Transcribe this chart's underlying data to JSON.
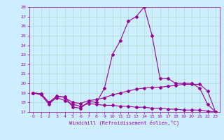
{
  "xlabel": "Windchill (Refroidissement éolien,°C)",
  "bg_color": "#cceeff",
  "line_color": "#990099",
  "grid_color": "#aaddcc",
  "xlim": [
    -0.5,
    23.5
  ],
  "ylim": [
    17,
    28
  ],
  "yticks": [
    17,
    18,
    19,
    20,
    21,
    22,
    23,
    24,
    25,
    26,
    27,
    28
  ],
  "xticks": [
    0,
    1,
    2,
    3,
    4,
    5,
    6,
    7,
    8,
    9,
    10,
    11,
    12,
    13,
    14,
    15,
    16,
    17,
    18,
    19,
    20,
    21,
    22,
    23
  ],
  "line1_x": [
    0,
    1,
    2,
    3,
    4,
    5,
    6,
    7,
    8,
    9,
    10,
    11,
    12,
    13,
    14,
    15,
    16,
    17,
    18,
    19,
    20,
    21,
    22,
    23
  ],
  "line1_y": [
    19.0,
    18.8,
    17.8,
    18.6,
    18.6,
    17.5,
    17.4,
    18.1,
    18.0,
    19.5,
    23.0,
    24.5,
    26.5,
    27.0,
    28.0,
    25.0,
    20.5,
    20.5,
    20.0,
    20.0,
    20.0,
    19.5,
    17.8,
    17.0
  ],
  "line2_x": [
    0,
    1,
    2,
    3,
    4,
    5,
    6,
    7,
    8,
    9,
    10,
    11,
    12,
    13,
    14,
    15,
    16,
    17,
    18,
    19,
    20,
    21,
    22,
    23
  ],
  "line2_y": [
    19.0,
    18.9,
    18.0,
    18.7,
    18.5,
    18.0,
    17.9,
    18.2,
    18.3,
    18.5,
    18.8,
    19.0,
    19.2,
    19.4,
    19.5,
    19.6,
    19.6,
    19.7,
    19.8,
    19.9,
    19.9,
    19.9,
    19.2,
    17.0
  ],
  "line3_x": [
    0,
    1,
    2,
    3,
    4,
    5,
    6,
    7,
    8,
    9,
    10,
    11,
    12,
    13,
    14,
    15,
    16,
    17,
    18,
    19,
    20,
    21,
    22,
    23
  ],
  "line3_y": [
    19.0,
    18.9,
    18.0,
    18.5,
    18.2,
    17.8,
    17.6,
    17.9,
    17.8,
    17.7,
    17.7,
    17.6,
    17.6,
    17.5,
    17.5,
    17.4,
    17.4,
    17.3,
    17.3,
    17.2,
    17.2,
    17.2,
    17.1,
    17.0
  ]
}
